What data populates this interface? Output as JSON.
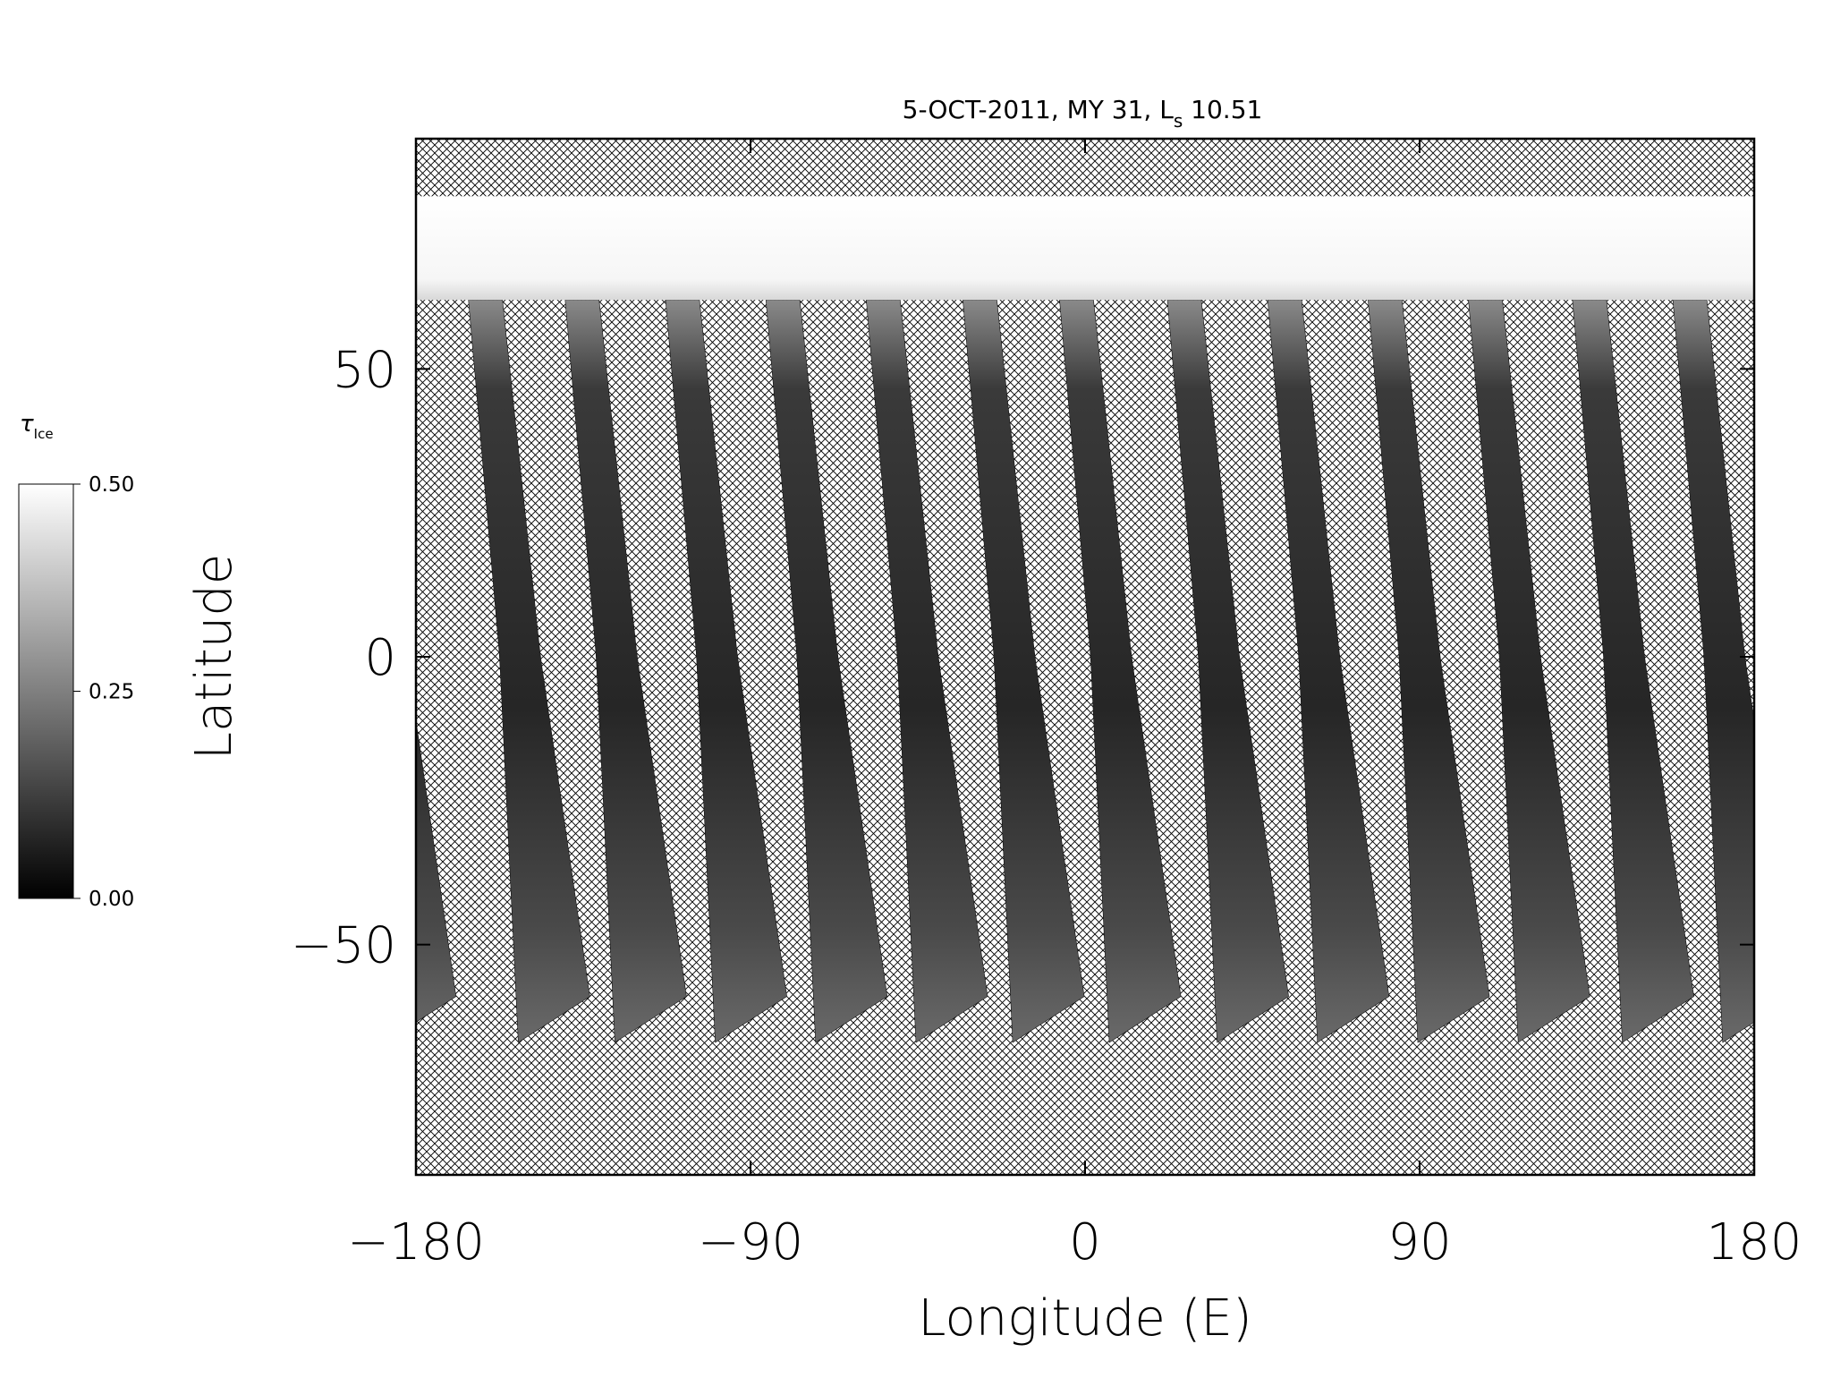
{
  "chart_data": {
    "type": "map",
    "title": [
      "5-OCT-2011, MY 31,  L",
      "s",
      " 10.51"
    ],
    "xlabel": "Longitude (E)",
    "ylabel": "Latitude",
    "xlim": [
      -180,
      180
    ],
    "ylim": [
      -90,
      90
    ],
    "xticks": [
      {
        "value": -180,
        "label": "−180"
      },
      {
        "value": -90,
        "label": "−90"
      },
      0,
      90,
      180
    ],
    "yticks": [
      {
        "value": -50,
        "label": "−50"
      },
      0,
      50
    ],
    "swath_lons": [
      -152,
      -126,
      -99,
      -72,
      -45,
      -19,
      7,
      36,
      63,
      90,
      117,
      145,
      172
    ],
    "swath_lat_range": [
      -67,
      62
    ],
    "cap_lat": [
      62,
      80
    ],
    "colorbar": {
      "label": [
        "τ",
        "Ice"
      ],
      "lim": [
        0,
        0.5
      ],
      "ticks": [
        {
          "value": 0,
          "label": "0.00"
        },
        {
          "value": 0.25,
          "label": "0.25"
        },
        {
          "value": 0.5,
          "label": "0.50"
        }
      ]
    }
  }
}
